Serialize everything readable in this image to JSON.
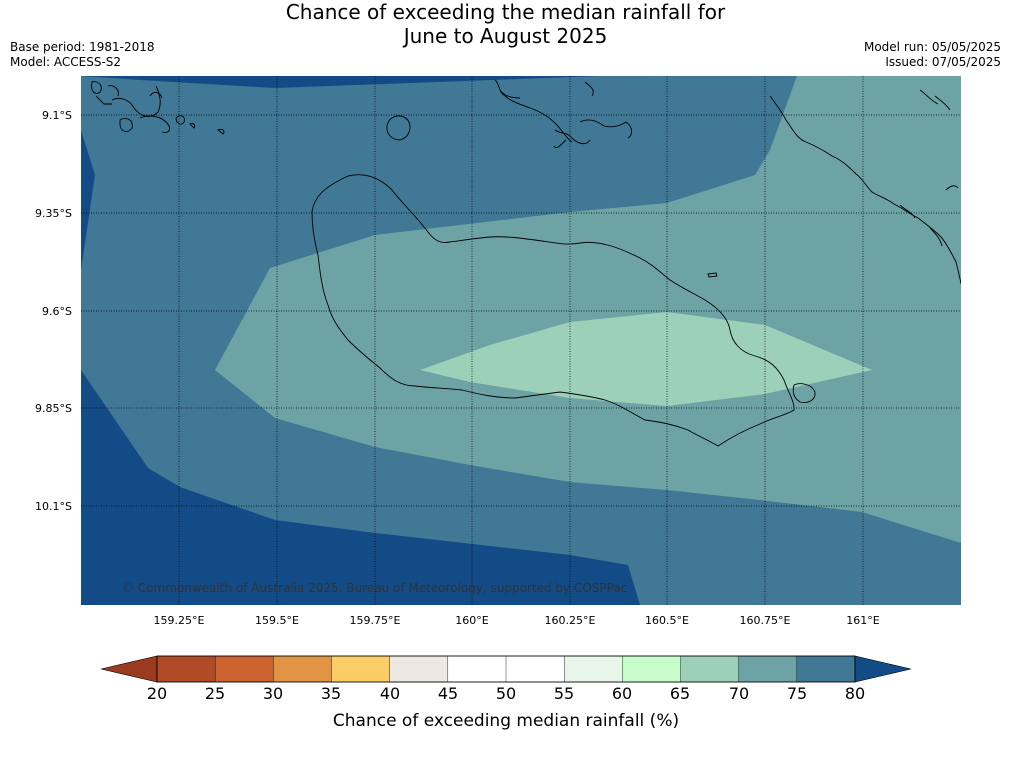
{
  "title": {
    "line1": "Chance of exceeding the median rainfall for",
    "line2": "June to August 2025"
  },
  "meta": {
    "base_period": "Base period: 1981-2018",
    "model": "Model: ACCESS-S2",
    "model_run": "Model run: 05/05/2025",
    "issued": "Issued: 07/05/2025"
  },
  "map": {
    "lat_labels": [
      "9.1°S",
      "9.35°S",
      "9.6°S",
      "9.85°S",
      "10.1°S"
    ],
    "lon_labels": [
      "159.25°E",
      "159.5°E",
      "159.75°E",
      "160°E",
      "160.25°E",
      "160.5°E",
      "160.75°E",
      "161°E"
    ],
    "copyright": "© Commonwealth of Australia 2025, Bureau of Meteorology, supported by COSPPac",
    "colors": {
      "over80": "#134b86",
      "band75_80": "#417895",
      "band70_75": "#6ea3a5",
      "band65_70": "#9dd0b8"
    }
  },
  "colorbar": {
    "title": "Chance of exceeding median rainfall (%)",
    "ticks": [
      "20",
      "25",
      "30",
      "35",
      "40",
      "45",
      "50",
      "55",
      "60",
      "65",
      "70",
      "75",
      "80"
    ],
    "under_color": "#9c3a1f",
    "over_color": "#134b86",
    "colors": [
      "#b04a27",
      "#cc6331",
      "#e09444",
      "#fccd67",
      "#ece9e3",
      "#ffffff",
      "#ffffff",
      "#e8f5e8",
      "#c8fcca",
      "#9dd0b8",
      "#6ea3a5",
      "#417895"
    ]
  }
}
